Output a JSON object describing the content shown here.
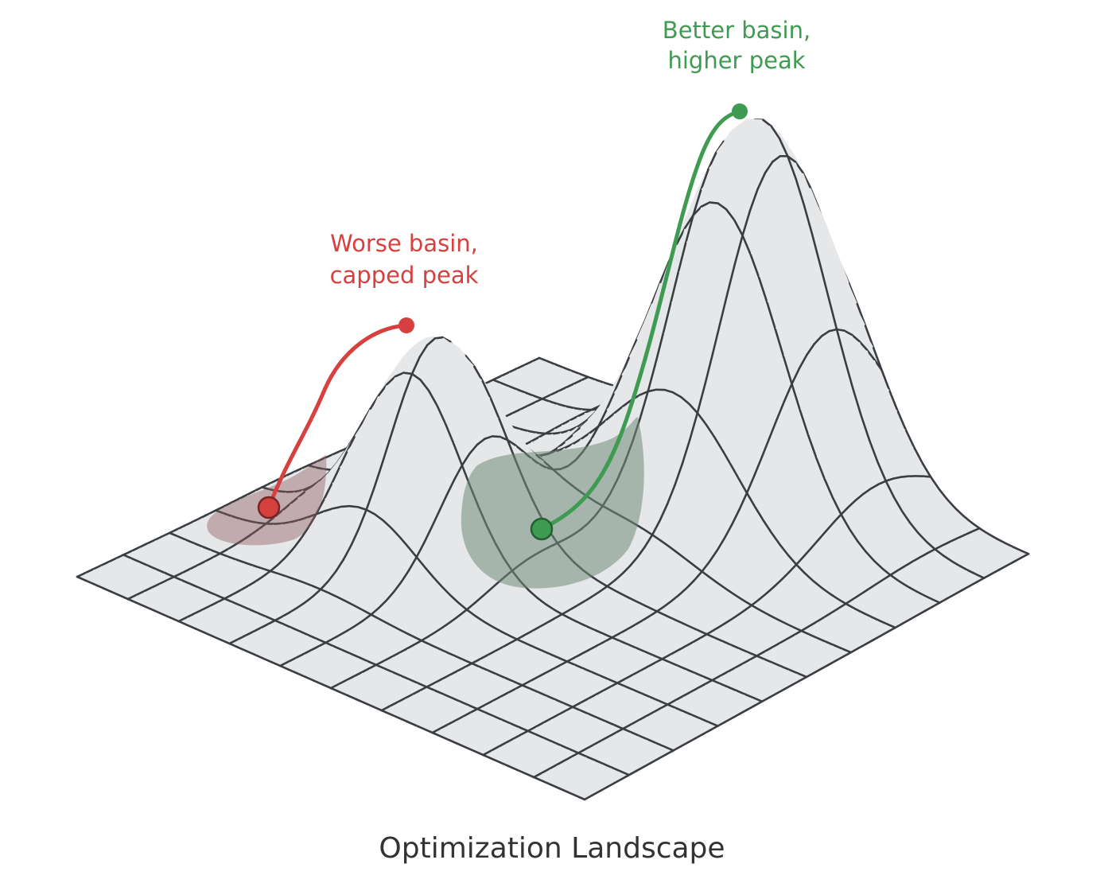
{
  "annotations": {
    "worse": [
      "Worse basin,",
      "capped peak"
    ],
    "better": [
      "Better basin,",
      "higher peak"
    ]
  },
  "title": "Optimization Landscape"
}
